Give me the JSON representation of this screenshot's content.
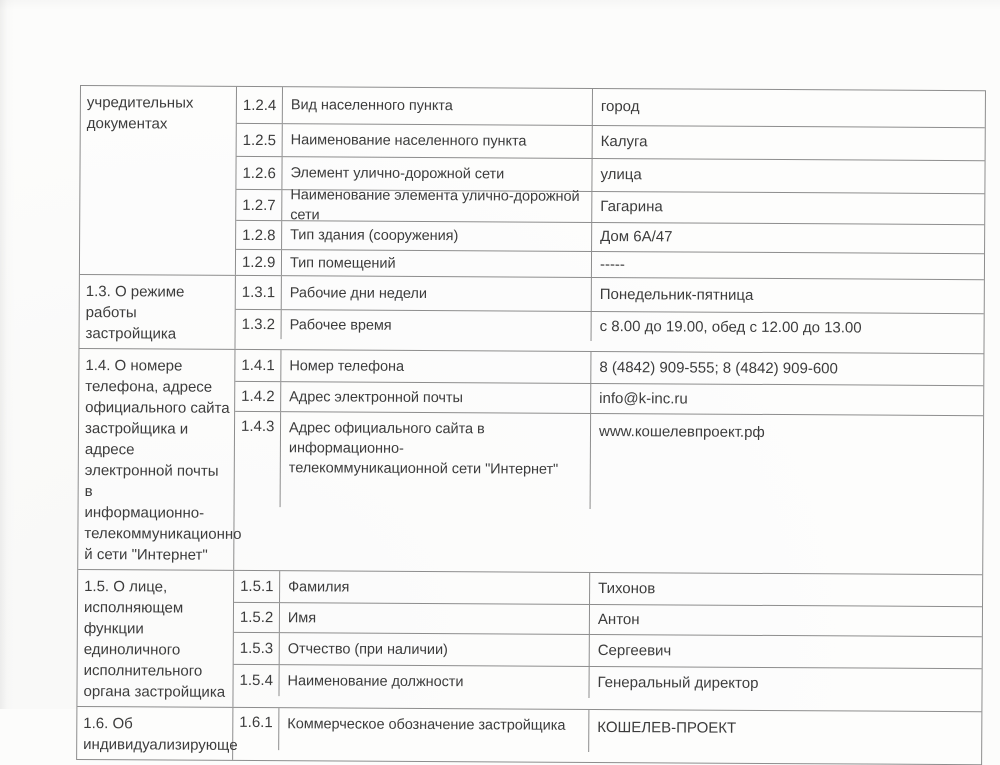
{
  "document": {
    "title": "Сведения о застройщике (скан страницы)",
    "sections": [
      {
        "label": "учредительных\nдокументах",
        "rows": [
          {
            "num": "1.2.4",
            "desc": "Вид населенного пункта",
            "value": "город"
          },
          {
            "num": "1.2.5",
            "desc": "Наименование населенного пункта",
            "value": "Калуга"
          },
          {
            "num": "1.2.6",
            "desc": "Элемент улично-дорожной сети",
            "value": "улица"
          },
          {
            "num": "1.2.7",
            "desc": "Наименование элемента улично-дорожной сети",
            "value": "Гагарина"
          },
          {
            "num": "1.2.8",
            "desc": "Тип здания (сооружения)",
            "value": "Дом 6А/47"
          },
          {
            "num": "1.2.9",
            "desc": "Тип помещений",
            "value": "-----"
          }
        ]
      },
      {
        "label": "1.3. О режиме работы\nзастройщика",
        "rows": [
          {
            "num": "1.3.1",
            "desc": "Рабочие дни недели",
            "value": "Понедельник-пятница"
          },
          {
            "num": "1.3.2",
            "desc": "Рабочее время",
            "value": "с 8.00 до 19.00, обед с 12.00 до 13.00"
          }
        ]
      },
      {
        "label": "1.4. О номере\nтелефона, адресе\nофициального сайта\nзастройщика и адресе\nэлектронной почты в\nинформационно-\nтелекоммуникационно\nй сети \"Интернет\"",
        "rows": [
          {
            "num": "1.4.1",
            "desc": "Номер телефона",
            "value": "8 (4842) 909-555; 8 (4842) 909-600"
          },
          {
            "num": "1.4.2",
            "desc": "Адрес электронной почты",
            "value": "info@k-inc.ru"
          },
          {
            "num": "1.4.3",
            "desc": "Адрес официального сайта в информационно-\nтелекоммуникационной сети \"Интернет\"",
            "value": "www.кошелевпроект.рф"
          }
        ]
      },
      {
        "label": "1.5. О лице,\nисполняющем функции\nединоличного\nисполнительного\nоргана застройщика",
        "rows": [
          {
            "num": "1.5.1",
            "desc": "Фамилия",
            "value": "Тихонов"
          },
          {
            "num": "1.5.2",
            "desc": "Имя",
            "value": "Антон"
          },
          {
            "num": "1.5.3",
            "desc": "Отчество (при наличии)",
            "value": "Сергеевич"
          },
          {
            "num": "1.5.4",
            "desc": "Наименование должности",
            "value": "Генеральный директор"
          }
        ]
      },
      {
        "label": "1.6. Об\nиндивидуализирующе",
        "rows": [
          {
            "num": "1.6.1",
            "desc": "Коммерческое обозначение застройщика",
            "value": "КОШЕЛЕВ-ПРОЕКТ"
          }
        ]
      }
    ]
  }
}
